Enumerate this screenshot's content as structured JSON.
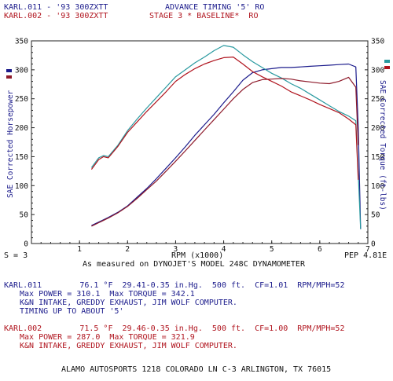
{
  "header": {
    "run1": "KARL.011 - '93 300ZXTT",
    "run2": "KARL.002 - '93 300ZXTT",
    "title1": "ADVANCE TIMING '5' RO",
    "title2": "STAGE 3 * BASELINE*  RO"
  },
  "axes": {
    "left_label": "SAE Corrected Horsepower",
    "right_label": "SAE Corrected Torque (ft-lbs)",
    "x_label": "RPM (x1000)",
    "left_ticks": [
      "0",
      "50",
      "100",
      "150",
      "200",
      "250",
      "300",
      "350"
    ],
    "right_ticks": [
      "0",
      "50",
      "100",
      "150",
      "200",
      "250",
      "300",
      "350"
    ],
    "x_ticks": [
      "1",
      "2",
      "3",
      "4",
      "5",
      "6",
      "7"
    ],
    "smoothing": "S = 3",
    "pep": "PEP 4.81E"
  },
  "measured_note": "As measured on DYNOJET'S MODEL 248C DYNAMOMETER",
  "run_info": {
    "run1": {
      "line1": "KARL.011        76.1 °F  29.41-0.35 in.Hg.  500 ft.  CF=1.01  RPM/MPH=52",
      "line2": "Max POWER = 310.1  Max TORQUE = 342.1",
      "line3": "K&N INTAKE, GREDDY EXHAUST, JIM WOLF COMPUTER.",
      "line4": "TIMING UP TO ABOUT '5'"
    },
    "run2": {
      "line1": "KARL.002        71.5 °F  29.46-0.35 in.Hg.  500 ft.  CF=1.00  RPM/MPH=52",
      "line2": "Max POWER = 287.0  Max TORQUE = 321.9",
      "line3": "K&N INTAKE, GREDDY EXHAUST, JIM WOLF COMPUTER."
    }
  },
  "footer": "ALAMO AUTOSPORTS 1218 COLORADO LN C-3 ARLINGTON, TX 76015",
  "colors": {
    "run1_power": "#1c1c8c",
    "run1_torque": "#2a9aa0",
    "run2_power": "#8e1a2a",
    "run2_torque": "#b0141e",
    "frame": "#222222"
  },
  "chart_data": {
    "type": "line",
    "xlabel": "RPM (x1000)",
    "ylabel": "SAE Corrected Horsepower",
    "ylabel_right": "SAE Corrected Torque (ft-lbs)",
    "xlim": [
      0,
      7
    ],
    "ylim": [
      0,
      350
    ],
    "grid": false,
    "series": [
      {
        "name": "KARL.011",
        "measure": "power",
        "color": "#1c1c8c",
        "x": [
          1.25,
          1.4,
          1.6,
          1.8,
          2.0,
          2.2,
          2.4,
          2.6,
          2.8,
          3.0,
          3.2,
          3.4,
          3.6,
          3.8,
          4.0,
          4.2,
          4.4,
          4.6,
          4.8,
          5.0,
          5.2,
          5.4,
          5.6,
          5.8,
          6.0,
          6.2,
          6.4,
          6.6,
          6.75,
          6.8,
          6.85
        ],
        "y": [
          31,
          37,
          45,
          54,
          65,
          80,
          95,
          112,
          130,
          148,
          167,
          187,
          205,
          223,
          243,
          262,
          282,
          295,
          300,
          302,
          304,
          304,
          305,
          306,
          307,
          308,
          309,
          310,
          305,
          200,
          25
        ]
      },
      {
        "name": "KARL.011",
        "measure": "torque",
        "color": "#2a9aa0",
        "x": [
          1.25,
          1.4,
          1.5,
          1.6,
          1.8,
          2.0,
          2.2,
          2.4,
          2.6,
          2.8,
          3.0,
          3.2,
          3.4,
          3.6,
          3.8,
          4.0,
          4.2,
          4.4,
          4.6,
          4.8,
          5.0,
          5.2,
          5.4,
          5.6,
          5.8,
          6.0,
          6.2,
          6.4,
          6.6,
          6.75,
          6.8,
          6.85
        ],
        "y": [
          131,
          148,
          152,
          150,
          170,
          195,
          215,
          234,
          252,
          270,
          288,
          300,
          312,
          322,
          333,
          342,
          339,
          326,
          314,
          304,
          294,
          286,
          276,
          268,
          258,
          248,
          238,
          228,
          220,
          212,
          120,
          25
        ]
      },
      {
        "name": "KARL.002",
        "measure": "power",
        "color": "#8e1a2a",
        "x": [
          1.25,
          1.4,
          1.6,
          1.8,
          2.0,
          2.2,
          2.4,
          2.6,
          2.8,
          3.0,
          3.2,
          3.4,
          3.6,
          3.8,
          4.0,
          4.2,
          4.4,
          4.6,
          4.8,
          5.0,
          5.2,
          5.4,
          5.6,
          5.8,
          6.0,
          6.2,
          6.4,
          6.6,
          6.75,
          6.8
        ],
        "y": [
          30,
          36,
          44,
          53,
          64,
          78,
          93,
          108,
          125,
          142,
          160,
          178,
          196,
          214,
          232,
          250,
          266,
          278,
          283,
          284,
          285,
          284,
          281,
          279,
          277,
          276,
          280,
          287,
          270,
          170
        ]
      },
      {
        "name": "KARL.002",
        "measure": "torque",
        "color": "#b0141e",
        "x": [
          1.25,
          1.4,
          1.5,
          1.6,
          1.8,
          2.0,
          2.2,
          2.4,
          2.6,
          2.8,
          3.0,
          3.2,
          3.4,
          3.6,
          3.8,
          4.0,
          4.2,
          4.4,
          4.6,
          4.8,
          5.0,
          5.2,
          5.4,
          5.6,
          5.8,
          6.0,
          6.2,
          6.4,
          6.6,
          6.75,
          6.8
        ],
        "y": [
          128,
          145,
          150,
          148,
          168,
          192,
          210,
          228,
          245,
          262,
          280,
          292,
          302,
          310,
          316,
          321,
          322,
          310,
          297,
          288,
          280,
          272,
          262,
          255,
          248,
          240,
          233,
          226,
          215,
          205,
          110
        ]
      }
    ]
  }
}
